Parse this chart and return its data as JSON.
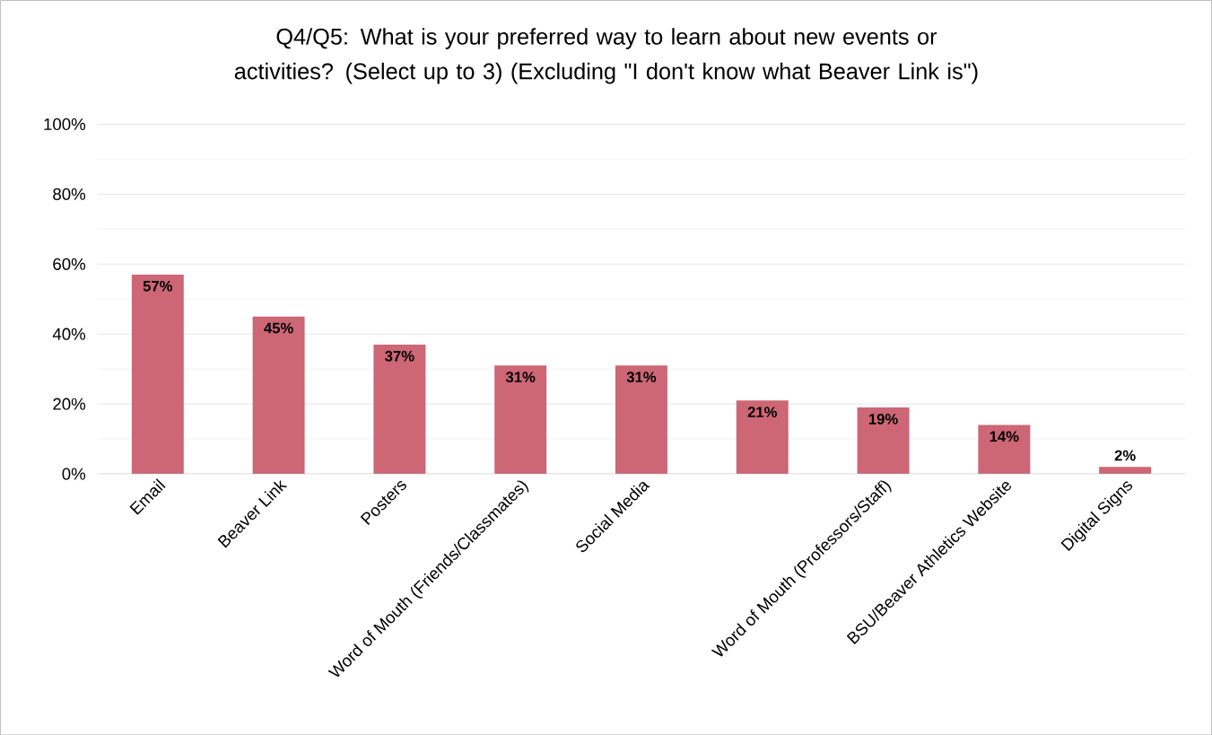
{
  "chart_data": {
    "type": "bar",
    "title": "Q4/Q5: What is your preferred way to learn about new events or activities?  (Select up to 3)  (Excluding \"I don't know what Beaver Link is\")",
    "categories": [
      "Email",
      "Beaver Link",
      "Posters",
      "Word of Mouth (Friends/Classmates)",
      "Social Media",
      null,
      "Word of Mouth (Professors/Staff)",
      "BSU/Beaver Athletics Website",
      "Digital Signs"
    ],
    "values": [
      57,
      45,
      37,
      31,
      31,
      21,
      19,
      14,
      2
    ],
    "value_labels": [
      "57%",
      "45%",
      "37%",
      "31%",
      "31%",
      "21%",
      "19%",
      "14%",
      "2%"
    ],
    "color": "#cd6675",
    "ylim": [
      0,
      100
    ],
    "yticks": [
      {
        "value": 0,
        "label": "0%"
      },
      {
        "value": 20,
        "label": "20%"
      },
      {
        "value": 40,
        "label": "40%"
      },
      {
        "value": 60,
        "label": "60%"
      },
      {
        "value": 80,
        "label": "80%"
      },
      {
        "value": 100,
        "label": "100%"
      }
    ],
    "grid": "y"
  }
}
